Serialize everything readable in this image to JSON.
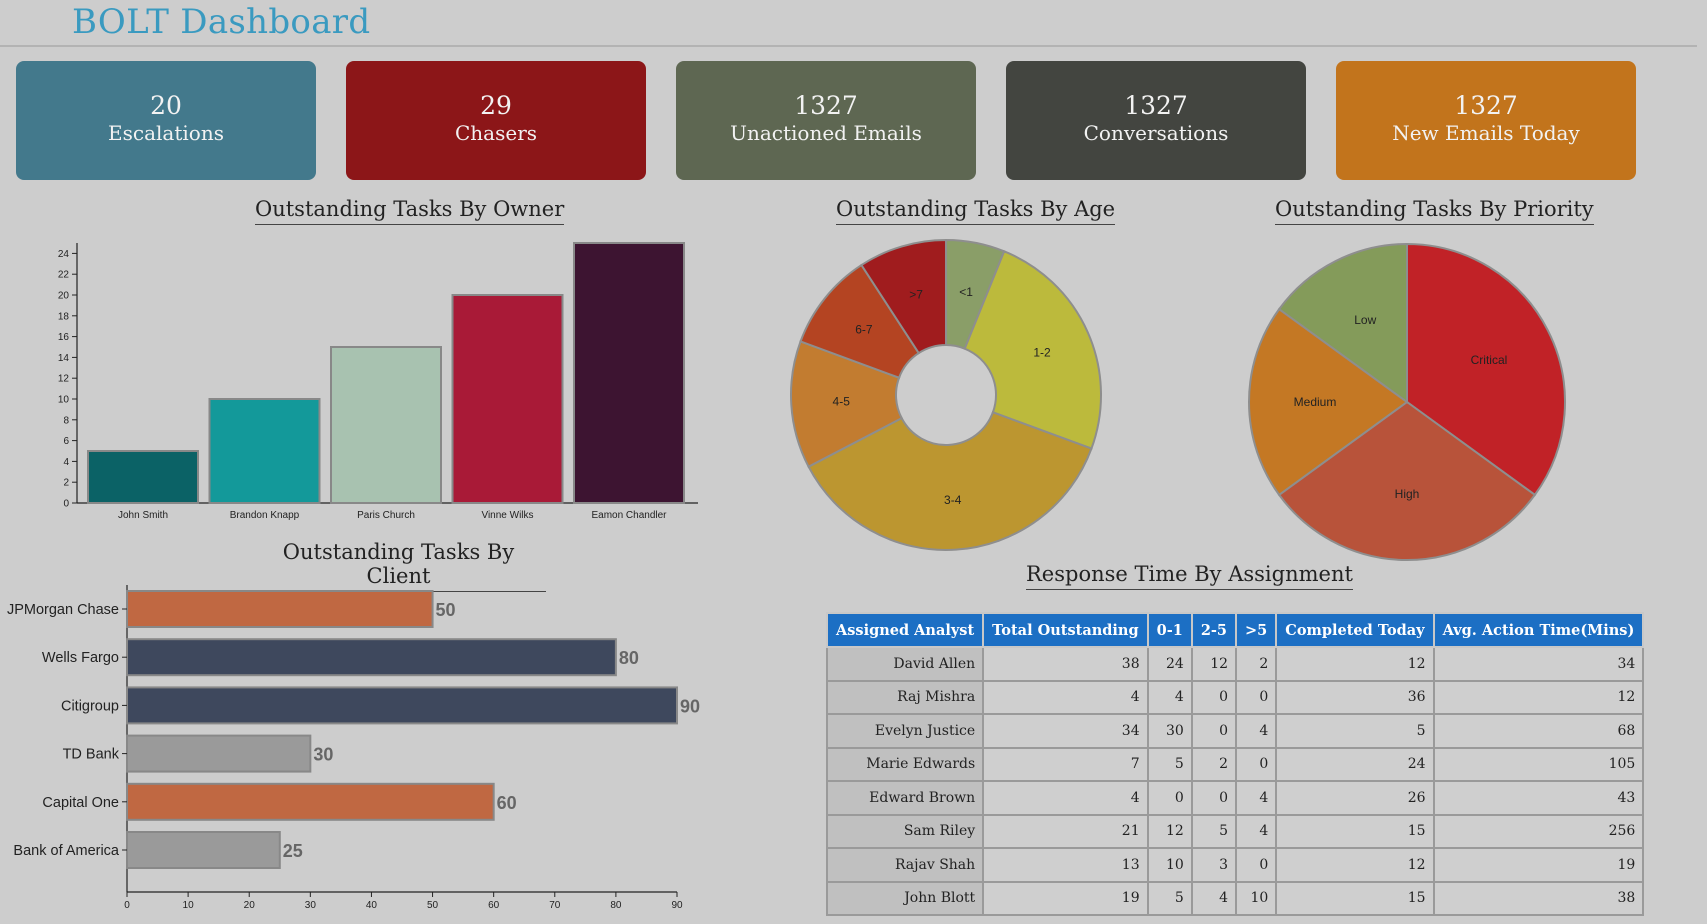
{
  "header": {
    "title": "BOLT Dashboard"
  },
  "colors": {
    "accent": "#3a9ac0",
    "table_header": "#1c6fc4"
  },
  "kpis": [
    {
      "value": "20",
      "label": "Escalations",
      "color": "#43798c"
    },
    {
      "value": "29",
      "label": "Chasers",
      "color": "#8c1618"
    },
    {
      "value": "1327",
      "label": "Unactioned Emails",
      "color": "#5e6752"
    },
    {
      "value": "1327",
      "label": "Conversations",
      "color": "#434540"
    },
    {
      "value": "1327",
      "label": "New Emails Today",
      "color": "#c2741c"
    }
  ],
  "sections": {
    "by_owner": "Outstanding Tasks By Owner",
    "by_age": "Outstanding Tasks By Age",
    "by_priority": "Outstanding Tasks By Priority",
    "by_client": "Outstanding Tasks By Client",
    "response_time": "Response Time By Assignment"
  },
  "chart_data": [
    {
      "id": "owner",
      "type": "bar",
      "title": "Outstanding Tasks By Owner",
      "categories": [
        "John Smith",
        "Brandon Knapp",
        "Paris Church",
        "Vinne Wilks",
        "Eamon Chandler"
      ],
      "values": [
        5,
        10,
        15,
        20,
        25
      ],
      "colors": [
        "#0b6266",
        "#13999a",
        "#a8c2b0",
        "#a91a37",
        "#3d1431"
      ],
      "ylim": [
        0,
        25
      ],
      "yticks": [
        "0",
        "2",
        "4",
        "6",
        "8",
        "10",
        "12",
        "14",
        "16",
        "18",
        "20",
        "22",
        "24"
      ],
      "xlabel": "",
      "ylabel": "",
      "grid": false
    },
    {
      "id": "age",
      "type": "pie",
      "title": "Outstanding Tasks By Age",
      "donut": true,
      "labels": [
        "<1",
        "1-2",
        "3-4",
        "4-5",
        "6-7",
        ">7"
      ],
      "values": [
        6,
        24,
        36,
        13,
        10,
        9
      ],
      "colors": [
        "#8a9e68",
        "#bcba3c",
        "#bc9630",
        "#c27c30",
        "#b44422",
        "#a01c1e"
      ]
    },
    {
      "id": "priority",
      "type": "pie",
      "title": "Outstanding Tasks By Priority",
      "donut": false,
      "labels": [
        "Critical",
        "High",
        "Medium",
        "Low"
      ],
      "values": [
        35,
        30,
        20,
        15
      ],
      "colors": [
        "#c12227",
        "#b8533a",
        "#c47824",
        "#849b5a"
      ]
    },
    {
      "id": "client",
      "type": "bar",
      "orientation": "horizontal",
      "title": "Outstanding Tasks By Client",
      "categories": [
        "JPMorgan Chase",
        "Wells Fargo",
        "Citigroup",
        "TD Bank",
        "Capital One",
        "Bank of America"
      ],
      "values": [
        50,
        80,
        90,
        30,
        60,
        25
      ],
      "value_labels": [
        "50",
        "80",
        "90",
        "30",
        "60",
        "25"
      ],
      "colors": [
        "#c06842",
        "#3e485d",
        "#3e485d",
        "#9a9a9a",
        "#c06842",
        "#9a9a9a"
      ],
      "xlim": [
        0,
        90
      ],
      "xticks": [
        "0",
        "10",
        "20",
        "30",
        "40",
        "50",
        "60",
        "70",
        "80",
        "90"
      ],
      "xlabel": "",
      "ylabel": "",
      "grid": false
    }
  ],
  "table": {
    "columns": [
      "Assigned Analyst",
      "Total Outstanding",
      "0-1",
      "2-5",
      ">5",
      "Completed Today",
      "Avg. Action Time(Mins)"
    ],
    "rows": [
      [
        "David Allen",
        "38",
        "24",
        "12",
        "2",
        "12",
        "34"
      ],
      [
        "Raj Mishra",
        "4",
        "4",
        "0",
        "0",
        "36",
        "12"
      ],
      [
        "Evelyn Justice",
        "34",
        "30",
        "0",
        "4",
        "5",
        "68"
      ],
      [
        "Marie Edwards",
        "7",
        "5",
        "2",
        "0",
        "24",
        "105"
      ],
      [
        "Edward Brown",
        "4",
        "0",
        "0",
        "4",
        "26",
        "43"
      ],
      [
        "Sam Riley",
        "21",
        "12",
        "5",
        "4",
        "15",
        "256"
      ],
      [
        "Rajav Shah",
        "13",
        "10",
        "3",
        "0",
        "12",
        "19"
      ],
      [
        "John Blott",
        "19",
        "5",
        "4",
        "10",
        "15",
        "38"
      ]
    ]
  }
}
